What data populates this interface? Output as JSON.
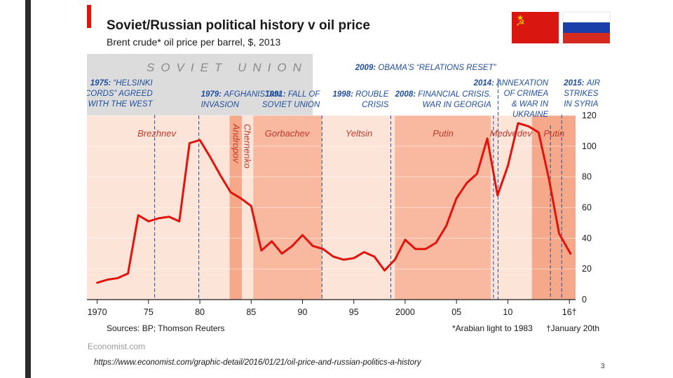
{
  "slide": {
    "source_url": "https://www.economist.com/graphic-detail/2016/01/21/oil-price-and-russian-politics-a-history",
    "page_number": "3"
  },
  "chart_data": {
    "type": "line",
    "title": "Soviet/Russian political history v oil price",
    "subtitle": "Brent crude* oil price per barrel, $, 2013",
    "era_label": "SOVIET UNION",
    "sources": "Sources: BP; Thomson Reuters",
    "footnote_star": "*Arabian light to 1983",
    "footnote_dagger": "†January 20th",
    "brand": "Economist.com",
    "xlabel": "",
    "ylabel": "",
    "xlim": [
      1969,
      2016.6
    ],
    "ylim": [
      0,
      120
    ],
    "yticks": [
      0,
      20,
      40,
      60,
      80,
      100,
      120
    ],
    "xticks": [
      {
        "value": 1970,
        "label": "1970"
      },
      {
        "value": 1975,
        "label": "75"
      },
      {
        "value": 1980,
        "label": "80"
      },
      {
        "value": 1985,
        "label": "85"
      },
      {
        "value": 1990,
        "label": "90"
      },
      {
        "value": 1995,
        "label": "95"
      },
      {
        "value": 2000,
        "label": "2000"
      },
      {
        "value": 2005,
        "label": "05"
      },
      {
        "value": 2010,
        "label": "10"
      },
      {
        "value": 2016,
        "label": "16†"
      }
    ],
    "series": [
      {
        "name": "Brent crude oil price",
        "color": "#e3120b",
        "points": [
          [
            1970,
            11
          ],
          [
            1971,
            13
          ],
          [
            1972,
            14
          ],
          [
            1973,
            17
          ],
          [
            1974,
            55
          ],
          [
            1975,
            51
          ],
          [
            1976,
            53
          ],
          [
            1977,
            54
          ],
          [
            1978,
            51
          ],
          [
            1979,
            102
          ],
          [
            1980,
            104
          ],
          [
            1981,
            93
          ],
          [
            1982,
            81
          ],
          [
            1983,
            70
          ],
          [
            1984,
            66
          ],
          [
            1985,
            61
          ],
          [
            1986,
            32
          ],
          [
            1987,
            38
          ],
          [
            1988,
            30
          ],
          [
            1989,
            35
          ],
          [
            1990,
            42
          ],
          [
            1991,
            35
          ],
          [
            1992,
            33
          ],
          [
            1993,
            28
          ],
          [
            1994,
            26
          ],
          [
            1995,
            27
          ],
          [
            1996,
            31
          ],
          [
            1997,
            28
          ],
          [
            1998,
            19
          ],
          [
            1999,
            26
          ],
          [
            2000,
            39
          ],
          [
            2001,
            33
          ],
          [
            2002,
            33
          ],
          [
            2003,
            37
          ],
          [
            2004,
            48
          ],
          [
            2005,
            66
          ],
          [
            2006,
            76
          ],
          [
            2007,
            82
          ],
          [
            2008,
            105
          ],
          [
            2009,
            68
          ],
          [
            2010,
            87
          ],
          [
            2011,
            115
          ],
          [
            2012,
            113
          ],
          [
            2013,
            109
          ],
          [
            2014,
            79
          ],
          [
            2015,
            43
          ],
          [
            2016.1,
            30
          ]
        ]
      }
    ],
    "leaders": [
      {
        "name": "Brezhnev",
        "start": 1969,
        "end": 1982.9,
        "shade": "#fde4d9",
        "label_at": 1975.8,
        "rotated": false
      },
      {
        "name": "Andropov",
        "start": 1982.9,
        "end": 1984.1,
        "shade": "#f5a98a",
        "label_at": 1983.5,
        "rotated": true
      },
      {
        "name": "Chernenko",
        "start": 1984.1,
        "end": 1985.2,
        "shade": "#fde4d9",
        "label_at": 1984.6,
        "rotated": true
      },
      {
        "name": "Gorbachev",
        "start": 1985.2,
        "end": 1991.9,
        "shade": "#f8b9a0",
        "label_at": 1988.5,
        "rotated": false
      },
      {
        "name": "Yeltsin",
        "start": 1991.9,
        "end": 1999.0,
        "shade": "#fde4d9",
        "label_at": 1995.5,
        "rotated": false
      },
      {
        "name": "Putin",
        "start": 1999.0,
        "end": 2008.35,
        "shade": "#f8b9a0",
        "label_at": 2003.7,
        "rotated": false
      },
      {
        "name": "Medvedev",
        "start": 2008.35,
        "end": 2012.35,
        "shade": "#fde4d9",
        "label_at": 2010.3,
        "rotated": false
      },
      {
        "name": "Putin",
        "start": 2012.35,
        "end": 2016.6,
        "shade": "#f5a98a",
        "label_at": 2014.5,
        "rotated": false
      }
    ],
    "events": [
      {
        "year": 1975.6,
        "bold": "1975:",
        "text": [
          "“HELSINKI",
          "ACCORDS” AGREED",
          "WITH THE WEST"
        ],
        "align": "end",
        "row": 0
      },
      {
        "year": 1979.9,
        "bold": "1979:",
        "text": [
          "AFGHANISTAN",
          "INVASION"
        ],
        "align": "start",
        "row": 1
      },
      {
        "year": 1991.9,
        "bold": "1991:",
        "text": [
          "FALL OF",
          "SOVIET UNION"
        ],
        "align": "end",
        "row": 1
      },
      {
        "year": 1998.6,
        "bold": "1998:",
        "text": [
          "ROUBLE",
          "CRISIS"
        ],
        "align": "end",
        "row": 1
      },
      {
        "year": 2008.6,
        "bold": "2008:",
        "text": [
          "FINANCIAL CRISIS.",
          "WAR IN GEORGIA"
        ],
        "align": "end",
        "row": 1
      },
      {
        "year": 2009.05,
        "bold": "2009:",
        "text": [
          "OBAMA’S “RELATIONS RESET”"
        ],
        "align": "end",
        "row": -1
      },
      {
        "year": 2014.15,
        "bold": "2014:",
        "text": [
          "ANNEXATION",
          "OF CRIMEA",
          "& WAR IN",
          "UKRAINE"
        ],
        "align": "end",
        "row": 0
      },
      {
        "year": 2015.25,
        "bold": "2015:",
        "text": [
          "AIR",
          "STRIKES",
          "IN SYRIA"
        ],
        "align": "start",
        "row": 0
      }
    ]
  }
}
